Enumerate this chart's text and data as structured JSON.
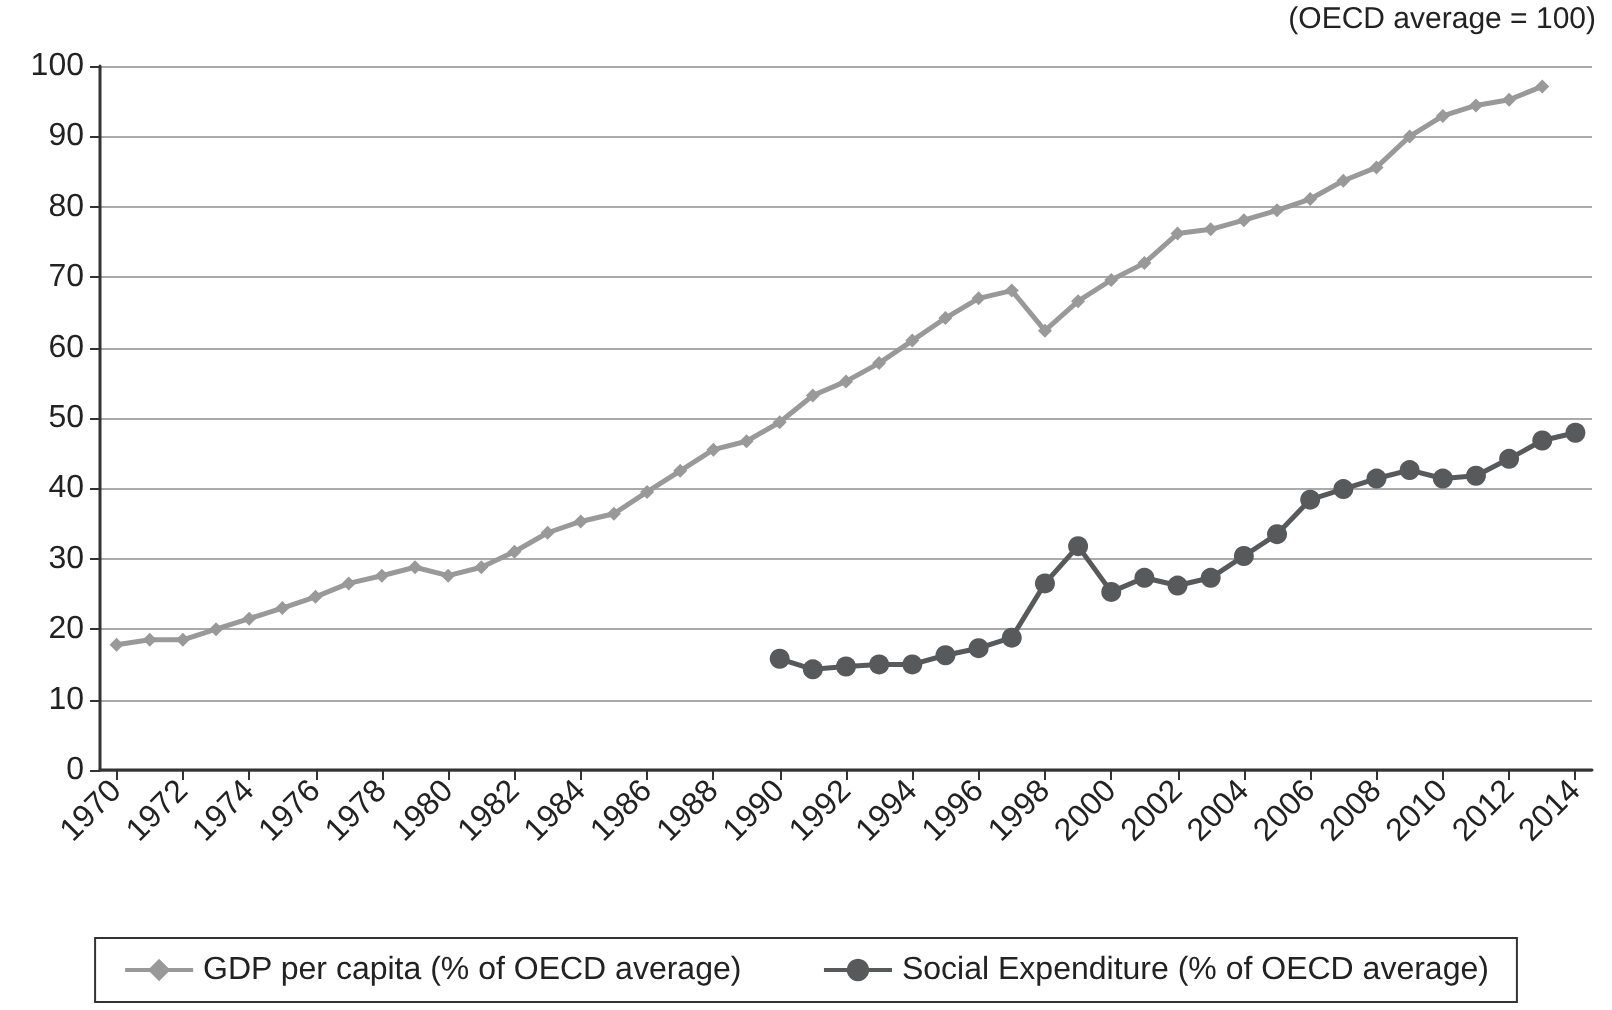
{
  "chart_data": {
    "type": "line",
    "annotations": [
      "(OECD average = 100)"
    ],
    "categories": [
      "1970",
      null,
      "1972",
      null,
      "1974",
      null,
      "1976",
      null,
      "1978",
      null,
      "1980",
      null,
      "1982",
      null,
      "1984",
      null,
      "1986",
      null,
      "1988",
      null,
      "1990",
      null,
      "1992",
      null,
      "1994",
      null,
      "1996",
      null,
      "1998",
      null,
      "2000",
      null,
      "2002",
      null,
      "2004",
      null,
      "2006",
      null,
      "2008",
      null,
      "2010",
      null,
      "2012",
      null,
      "2014"
    ],
    "series": [
      {
        "name": "GDP per capita (% of OECD average)",
        "color": "#999999",
        "marker": "diamond",
        "values": [
          17.8,
          18.5,
          18.5,
          20,
          21.5,
          23,
          24.6,
          26.5,
          27.6,
          28.8,
          27.6,
          28.8,
          31,
          33.7,
          35.3,
          36.4,
          39.5,
          42.5,
          45.5,
          46.7,
          49.4,
          53.2,
          55.2,
          57.8,
          61,
          64.2,
          67,
          68.1,
          62.4,
          66.6,
          69.6,
          72,
          76.2,
          76.8,
          78.1,
          79.5,
          81.1,
          83.7,
          85.6,
          90,
          92.9,
          94.4,
          95.2,
          97.1,
          null
        ]
      },
      {
        "name": "Social Expenditure (% of OECD average)",
        "color": "#58595b",
        "marker": "circle",
        "values": [
          null,
          null,
          null,
          null,
          null,
          null,
          null,
          null,
          null,
          null,
          null,
          null,
          null,
          null,
          null,
          null,
          null,
          null,
          null,
          null,
          15.8,
          14.3,
          14.7,
          15,
          15,
          16.3,
          17.3,
          18.8,
          26.5,
          31.8,
          25.3,
          27.3,
          26.2,
          27.3,
          30.4,
          33.5,
          38.4,
          39.9,
          41.4,
          42.6,
          41.4,
          41.8,
          44.2,
          46.8,
          47.9
        ]
      }
    ],
    "ylim": [
      0,
      100
    ],
    "yticks": [
      0,
      10,
      20,
      30,
      40,
      50,
      60,
      70,
      80,
      90,
      100
    ],
    "grid": "y",
    "legend": "bottom",
    "line_style": "solid"
  }
}
